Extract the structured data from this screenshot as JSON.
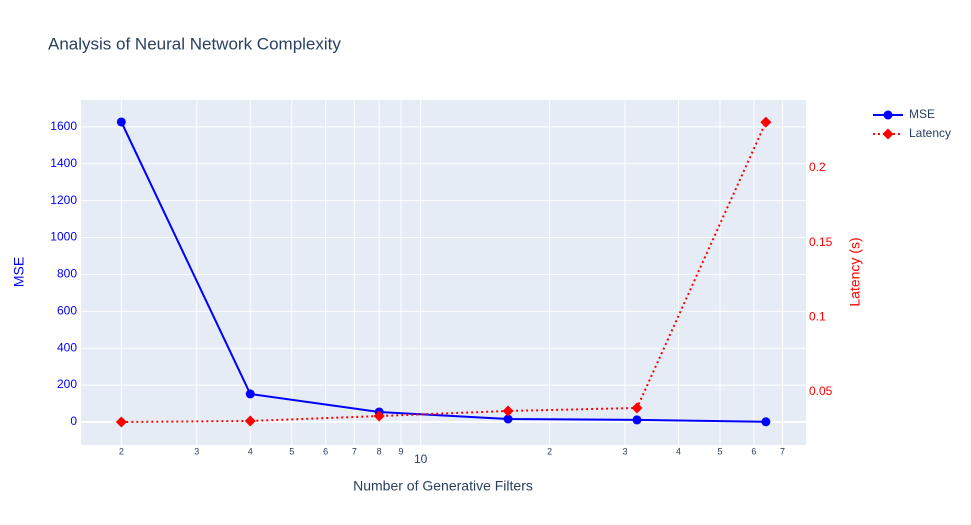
{
  "chart_data": {
    "type": "line",
    "title": "Analysis of Neural Network Complexity",
    "x_label": "Number of Generative Filters",
    "y_label": "MSE",
    "y2_label": "Latency (s)",
    "x": [
      2,
      4,
      8,
      16,
      32,
      64
    ],
    "x_log": true,
    "xlim": [
      1.61,
      79.4
    ],
    "xticks": [
      2,
      3,
      4,
      5,
      6,
      7,
      8,
      9,
      10,
      {
        "value": 20,
        "label": "2"
      },
      {
        "value": 30,
        "label": "3"
      },
      {
        "value": 40,
        "label": "4"
      },
      {
        "value": 50,
        "label": "5"
      },
      {
        "value": 60,
        "label": "6"
      },
      {
        "value": 70,
        "label": "7"
      }
    ],
    "ylim": [
      -125,
      1746
    ],
    "yticks": [
      0,
      200,
      400,
      600,
      800,
      1000,
      1200,
      1400,
      1600
    ],
    "y2lim": [
      0.0145,
      0.2456
    ],
    "y2ticks": [
      0.05,
      0.1,
      0.15,
      0.2
    ],
    "grid": true,
    "legend": "top-right",
    "series": [
      {
        "name": "MSE",
        "color": "#0000ff",
        "marker": "circle",
        "dash": "solid",
        "values": [
          1627,
          152,
          54,
          16,
          11,
          1
        ]
      },
      {
        "name": "Latency",
        "color": "#ff0000",
        "marker": "diamond",
        "dash": "dot",
        "axis": "y2",
        "values": [
          0.0299,
          0.0306,
          0.0339,
          0.0373,
          0.0393,
          0.2308
        ]
      }
    ]
  }
}
